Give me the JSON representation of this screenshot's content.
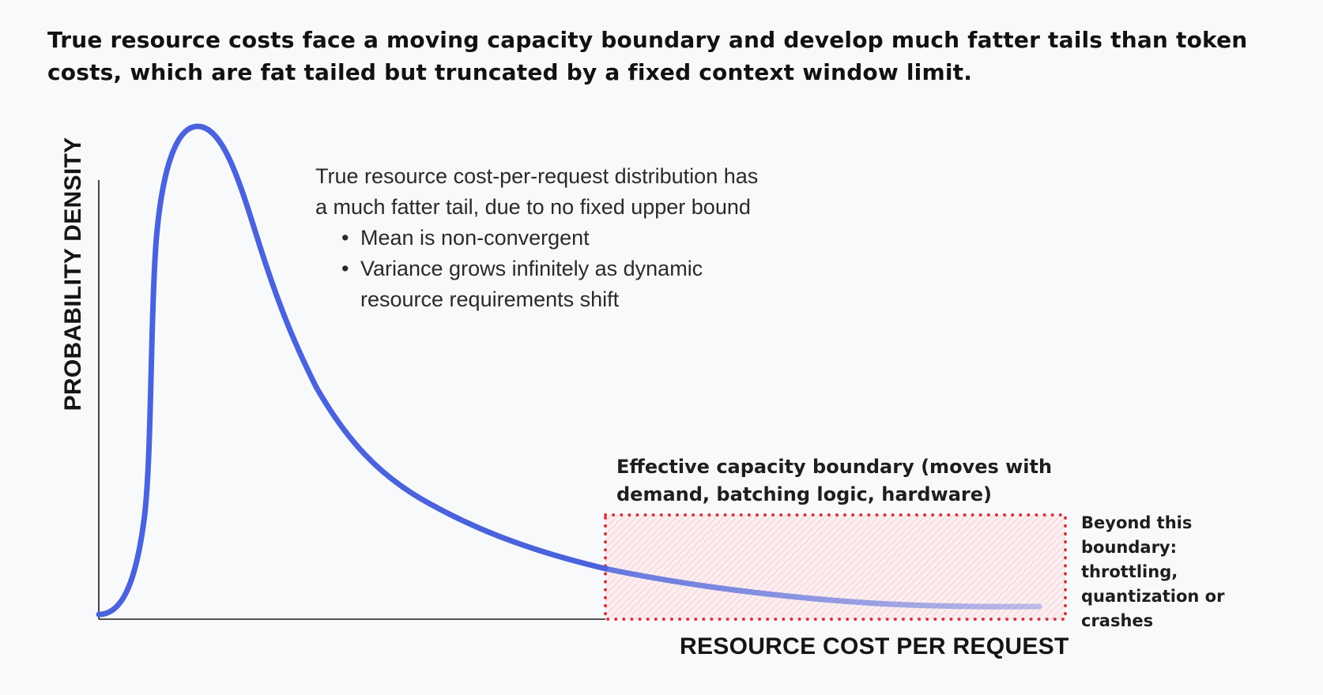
{
  "headline": {
    "line1": "True resource costs face a moving capacity boundary and develop much fatter tails than token",
    "line2": "costs, which are fat tailed but truncated by a fixed context window limit."
  },
  "annotation": {
    "line1": "True resource cost-per-request distribution has",
    "line2": "a much fatter tail, due to no fixed upper bound",
    "bullet1": "Mean is non-convergent",
    "bullet2_line1": "Variance grows infinitely as dynamic",
    "bullet2_line2": "resource requirements shift"
  },
  "boundary_label": {
    "line1": "Effective capacity boundary (moves with",
    "line2": "demand, batching logic, hardware)"
  },
  "beyond_label": {
    "line1": "Beyond this",
    "line2": "boundary:",
    "line3": "throttling,",
    "line4": "quantization or",
    "line5": "crashes"
  },
  "axes": {
    "y_label": "PROBABILITY DENSITY",
    "x_label": "RESOURCE COST PER REQUEST"
  },
  "colors": {
    "curve": "#4a63dc",
    "boundary": "#d2383f",
    "axis": "#1a1a1a"
  }
}
